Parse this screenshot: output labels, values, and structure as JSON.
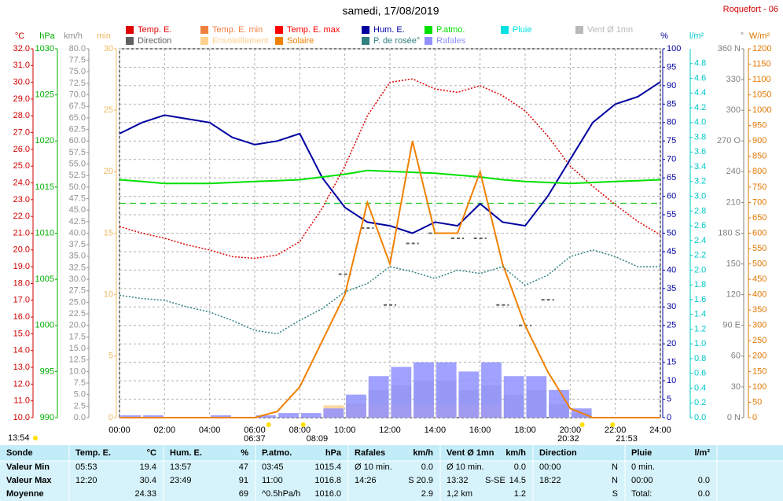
{
  "chart_data": {
    "type": "line",
    "title": "samedi, 17/08/2019",
    "station": "Roquefort - 06",
    "update_time": "13:54",
    "x": [
      0,
      1,
      2,
      3,
      4,
      5,
      6,
      7,
      8,
      9,
      10,
      11,
      12,
      13,
      14,
      15,
      16,
      17,
      18,
      19,
      20,
      21,
      22,
      23,
      24
    ],
    "xlim": [
      0,
      24
    ],
    "xticks": [
      {
        "value": 0,
        "label": "00:00"
      },
      {
        "value": 2,
        "label": "02:00"
      },
      {
        "value": 4,
        "label": "04:00"
      },
      {
        "value": 6,
        "label": "06:00"
      },
      {
        "value": 8,
        "label": "08:00"
      },
      {
        "value": 10,
        "label": "10:00"
      },
      {
        "value": 12,
        "label": "12:00"
      },
      {
        "value": 14,
        "label": "14:00"
      },
      {
        "value": 16,
        "label": "16:00"
      },
      {
        "value": 18,
        "label": "18:00"
      },
      {
        "value": 20,
        "label": "20:00"
      },
      {
        "value": 22,
        "label": "22:00"
      },
      {
        "value": 24,
        "label": "24:00"
      }
    ],
    "grid": true,
    "events": [
      {
        "value": 6.617,
        "label": "06:37"
      },
      {
        "value": 8.15,
        "label": "08:09"
      },
      {
        "value": 20.533,
        "label": "20:32"
      },
      {
        "value": 21.883,
        "label": "21:53"
      }
    ],
    "y_axes": [
      {
        "unit": "°C",
        "color": "#d00000",
        "lim": [
          10,
          32
        ],
        "ticks": [
          {
            "value": 10,
            "label": "10.0"
          },
          {
            "value": 11,
            "label": "11.0"
          },
          {
            "value": 12,
            "label": "12.0"
          },
          {
            "value": 13,
            "label": "13.0"
          },
          {
            "value": 14,
            "label": "14.0"
          },
          {
            "value": 15,
            "label": "15.0"
          },
          {
            "value": 16,
            "label": "16.0"
          },
          {
            "value": 17,
            "label": "17.0"
          },
          {
            "value": 18,
            "label": "18.0"
          },
          {
            "value": 19,
            "label": "19.0"
          },
          {
            "value": 20,
            "label": "20.0"
          },
          {
            "value": 21,
            "label": "21.0"
          },
          {
            "value": 22,
            "label": "22.0"
          },
          {
            "value": 23,
            "label": "23.0"
          },
          {
            "value": 24,
            "label": "24.0"
          },
          {
            "value": 25,
            "label": "25.0"
          },
          {
            "value": 26,
            "label": "26.0"
          },
          {
            "value": 27,
            "label": "27.0"
          },
          {
            "value": 28,
            "label": "28.0"
          },
          {
            "value": 29,
            "label": "29.0"
          },
          {
            "value": 30,
            "label": "30.0"
          },
          {
            "value": 31,
            "label": "31.0"
          },
          {
            "value": 32,
            "label": "32.0"
          }
        ]
      },
      {
        "unit": "hPa",
        "color": "#00b000",
        "lim": [
          990,
          1030
        ],
        "ticks": [
          990,
          995,
          1000,
          1005,
          1010,
          1015,
          1020,
          1025,
          1030
        ]
      },
      {
        "unit": "km/h",
        "color": "#909090",
        "lim": [
          0,
          80
        ],
        "ticks": [
          {
            "value": 0,
            "label": "0.0"
          },
          2.5,
          {
            "value": 5,
            "label": "5.0"
          },
          7.5,
          {
            "value": 10,
            "label": "10.0"
          },
          12.5,
          {
            "value": 15,
            "label": "15.0"
          },
          17.5,
          {
            "value": 20,
            "label": "20.0"
          },
          22.5,
          {
            "value": 25,
            "label": "25.0"
          },
          27.5,
          {
            "value": 30,
            "label": "30.0"
          },
          32.5,
          {
            "value": 35,
            "label": "35.0"
          },
          37.5,
          {
            "value": 40,
            "label": "40.0"
          },
          42.5,
          {
            "value": 45,
            "label": "45.0"
          },
          47.5,
          {
            "value": 50,
            "label": "50.0"
          },
          52.5,
          {
            "value": 55,
            "label": "55.0"
          },
          57.5,
          {
            "value": 60,
            "label": "60.0"
          },
          62.5,
          {
            "value": 65,
            "label": "65.0"
          },
          67.5,
          {
            "value": 70,
            "label": "70.0"
          },
          72.5,
          {
            "value": 75,
            "label": "75.0"
          },
          77.5,
          {
            "value": 80,
            "label": "80.0"
          }
        ]
      },
      {
        "unit": "min",
        "color": "#f0b860",
        "lim": [
          0,
          30
        ],
        "ticks": [
          0,
          5,
          10,
          15,
          20,
          25,
          30
        ]
      },
      {
        "unit": "%",
        "color": "#0000a0",
        "lim": [
          0,
          100
        ],
        "ticks": [
          0,
          5,
          10,
          15,
          20,
          25,
          30,
          35,
          40,
          45,
          50,
          55,
          60,
          65,
          70,
          75,
          80,
          85,
          90,
          95,
          100
        ]
      },
      {
        "unit": "l/m²",
        "color": "#00c8c8",
        "lim": [
          0,
          5
        ],
        "ticks": [
          {
            "value": 0,
            "label": "0.0"
          },
          0.2,
          0.4,
          0.6,
          0.8,
          {
            "value": 1,
            "label": "1.0"
          },
          1.2,
          1.4,
          1.6,
          1.8,
          {
            "value": 2,
            "label": "2.0"
          },
          2.2,
          2.4,
          2.6,
          2.8,
          {
            "value": 3,
            "label": "3.0"
          },
          3.2,
          3.4,
          3.6,
          3.8,
          {
            "value": 4,
            "label": "4.0"
          },
          4.2,
          4.4,
          4.6,
          4.8
        ]
      },
      {
        "unit": "°",
        "color": "#808080",
        "lim": [
          0,
          360
        ],
        "ticks": [
          {
            "value": 0,
            "label": "0 N"
          },
          30,
          60,
          {
            "value": 90,
            "label": "90 E"
          },
          120,
          150,
          {
            "value": 180,
            "label": "180 S"
          },
          210,
          240,
          {
            "value": 270,
            "label": "270 O"
          },
          300,
          330,
          {
            "value": 360,
            "label": "360 N"
          }
        ]
      },
      {
        "unit": "W/m²",
        "color": "#e07800",
        "lim": [
          0,
          1200
        ],
        "ticks": [
          0,
          50,
          100,
          150,
          200,
          250,
          300,
          350,
          400,
          450,
          500,
          550,
          600,
          650,
          700,
          750,
          800,
          850,
          900,
          950,
          1000,
          1050,
          1100,
          1150,
          1200
        ]
      }
    ],
    "reference_lines": [
      {
        "value": 1013.25,
        "axis": "hPa",
        "color": "#00c000"
      }
    ],
    "series": [
      {
        "name": "Temp. E.",
        "color": "#e00000",
        "axis": "°C",
        "style": "dotted",
        "values": [
          21.4,
          21.0,
          20.7,
          20.3,
          20.0,
          19.6,
          19.5,
          19.7,
          20.5,
          22.5,
          25.0,
          28.0,
          30.0,
          30.2,
          29.6,
          29.4,
          29.8,
          29.2,
          28.3,
          26.8,
          25.0,
          23.8,
          22.7,
          21.7,
          20.9
        ]
      },
      {
        "name": "Temp. E. min",
        "color": "#f08040"
      },
      {
        "name": "Temp. E. max",
        "color": "#ff0000"
      },
      {
        "name": "Hum. E.",
        "color": "#0000a0",
        "axis": "%",
        "style": "line",
        "values": [
          77,
          80,
          82,
          81,
          80,
          76,
          74,
          75,
          77,
          65,
          57,
          53,
          52,
          50,
          53,
          52,
          58,
          53,
          52,
          60,
          70,
          80,
          85,
          87,
          91
        ]
      },
      {
        "name": "P.atmo.",
        "color": "#00e000",
        "axis": "hPa",
        "style": "line",
        "values": [
          1015.8,
          1015.6,
          1015.4,
          1015.4,
          1015.4,
          1015.5,
          1015.6,
          1015.7,
          1015.8,
          1016.1,
          1016.4,
          1016.8,
          1016.7,
          1016.6,
          1016.5,
          1016.3,
          1016.1,
          1015.8,
          1015.6,
          1015.5,
          1015.4,
          1015.5,
          1015.6,
          1015.7,
          1015.8
        ]
      },
      {
        "name": "Pluie",
        "color": "#00e0e0"
      },
      {
        "name": "Vent Ø 1mn",
        "color": "#b8b8b8",
        "axis": "km/h",
        "style": "bars",
        "values": [
          0,
          0,
          0,
          0,
          0,
          0,
          0,
          0,
          0,
          1,
          3,
          6,
          7,
          8,
          8,
          6,
          7,
          5,
          6,
          3,
          1,
          0,
          0,
          0,
          null
        ]
      },
      {
        "name": "Direction",
        "color": "#606060",
        "axis": "°",
        "style": "dash",
        "values": [
          null,
          null,
          null,
          null,
          null,
          null,
          null,
          null,
          null,
          null,
          140,
          185,
          110,
          170,
          180,
          175,
          175,
          110,
          90,
          115,
          null,
          null,
          null,
          null,
          null
        ]
      },
      {
        "name": "Ensoleillement",
        "color": "#ffd090",
        "axis": "min",
        "style": "bars",
        "values": [
          0,
          0,
          0,
          0,
          0,
          0,
          0,
          0,
          0,
          1,
          1,
          1,
          1,
          1,
          1,
          1,
          1,
          0,
          0,
          0,
          0,
          0,
          0,
          0,
          null
        ]
      },
      {
        "name": "Solaire",
        "color": "#f08000",
        "axis": "W/m²",
        "style": "line",
        "values": [
          0,
          0,
          0,
          0,
          0,
          0,
          0,
          20,
          100,
          250,
          400,
          700,
          500,
          900,
          600,
          600,
          800,
          500,
          300,
          150,
          30,
          0,
          0,
          0,
          0
        ]
      },
      {
        "name": "P. de rosée°",
        "color": "#308080",
        "axis": "°C",
        "style": "dotted",
        "values": [
          17.3,
          17.1,
          17.0,
          16.6,
          16.3,
          15.8,
          15.2,
          15.0,
          15.8,
          16.5,
          17.5,
          18.0,
          19.0,
          18.7,
          18.3,
          18.8,
          18.6,
          19.0,
          17.9,
          18.5,
          19.6,
          20.0,
          19.6,
          19.0,
          19.0
        ]
      },
      {
        "name": "Rafales",
        "color": "#9090ff",
        "axis": "km/h",
        "style": "bars",
        "values": [
          0.5,
          0.5,
          0,
          0,
          0.5,
          0,
          0.5,
          1,
          1,
          2,
          5,
          9,
          11,
          12,
          12,
          10,
          12,
          9,
          9,
          6,
          2,
          0,
          0,
          0,
          null
        ]
      }
    ]
  },
  "table": {
    "rows": [
      [
        {
          "l": "Sonde"
        },
        {
          "l": "Temp. E.",
          "r": "°C"
        },
        {
          "l": "Hum. E.",
          "r": "%"
        },
        {
          "l": "P.atmo.",
          "r": "hPa"
        },
        {
          "l": "Rafales",
          "r": "km/h"
        },
        {
          "l": "Vent Ø 1mn",
          "r": "km/h"
        },
        {
          "l": "Direction"
        },
        {
          "l": "Pluie",
          "r": "l/m²"
        }
      ],
      [
        {
          "l": "Valeur Min"
        },
        {
          "l": "05:53",
          "r": "19.4"
        },
        {
          "l": "13:57",
          "r": "47"
        },
        {
          "l": "03:45",
          "r": "1015.4"
        },
        {
          "l": "Ø 10 min.",
          "r": "0.0"
        },
        {
          "l": "Ø 10 min.",
          "r": "0.0"
        },
        {
          "l": "00:00",
          "r": "N"
        },
        {
          "l": "0 min."
        }
      ],
      [
        {
          "l": "Valeur Max"
        },
        {
          "l": "12:20",
          "r": "30.4"
        },
        {
          "l": "23:49",
          "r": "91"
        },
        {
          "l": "11:00",
          "r": "1016.8"
        },
        {
          "l": "14:26",
          "r": "S 20.9"
        },
        {
          "l": "13:32",
          "m": "S-SE",
          "r": "14.5"
        },
        {
          "l": "18:22",
          "r": "N"
        },
        {
          "l": "00:00",
          "r": "0.0"
        }
      ],
      [
        {
          "l": "Moyenne"
        },
        {
          "r": "24.33"
        },
        {
          "r": "69"
        },
        {
          "l": "^0.5hPa/h",
          "r": "1016.0"
        },
        {
          "r": "2.9"
        },
        {
          "l": "1,2 km",
          "r": "1.2"
        },
        {
          "r": "S"
        },
        {
          "l": "Total:",
          "r": "0.0"
        }
      ]
    ]
  }
}
